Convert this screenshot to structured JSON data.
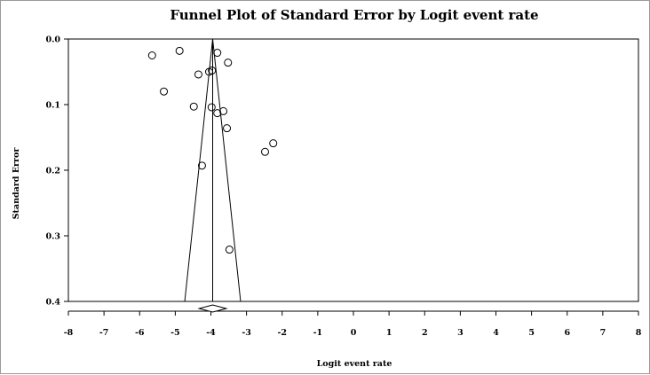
{
  "chart_data": {
    "type": "scatter",
    "title": "Funnel Plot of Standard Error by Logit event rate",
    "xlabel": "Logit event rate",
    "ylabel": "Standard Error",
    "xlim": [
      -8,
      8
    ],
    "ylim": [
      0.0,
      0.4
    ],
    "y_inverted": true,
    "x_ticks": [
      "-8",
      "-7",
      "-6",
      "-5",
      "-4",
      "-3",
      "-2",
      "-1",
      "0",
      "1",
      "2",
      "3",
      "4",
      "5",
      "6",
      "7",
      "8"
    ],
    "y_ticks": [
      "0.0",
      "0.1",
      "0.2",
      "0.3",
      "0.4"
    ],
    "grid": false,
    "points": [
      {
        "x": -5.65,
        "y": 0.025
      },
      {
        "x": -4.88,
        "y": 0.018
      },
      {
        "x": -3.82,
        "y": 0.021
      },
      {
        "x": -3.52,
        "y": 0.036
      },
      {
        "x": -4.05,
        "y": 0.05
      },
      {
        "x": -3.97,
        "y": 0.048
      },
      {
        "x": -4.35,
        "y": 0.054
      },
      {
        "x": -5.32,
        "y": 0.08
      },
      {
        "x": -4.48,
        "y": 0.103
      },
      {
        "x": -3.98,
        "y": 0.104
      },
      {
        "x": -3.65,
        "y": 0.11
      },
      {
        "x": -3.82,
        "y": 0.113
      },
      {
        "x": -3.55,
        "y": 0.136
      },
      {
        "x": -2.25,
        "y": 0.159
      },
      {
        "x": -2.48,
        "y": 0.172
      },
      {
        "x": -4.25,
        "y": 0.193
      },
      {
        "x": -3.48,
        "y": 0.321
      }
    ],
    "summary_effect": -3.95,
    "funnel_se_max": 0.4,
    "summary_diamond": {
      "center": -3.95,
      "lower": -4.33,
      "upper": -3.57
    }
  }
}
